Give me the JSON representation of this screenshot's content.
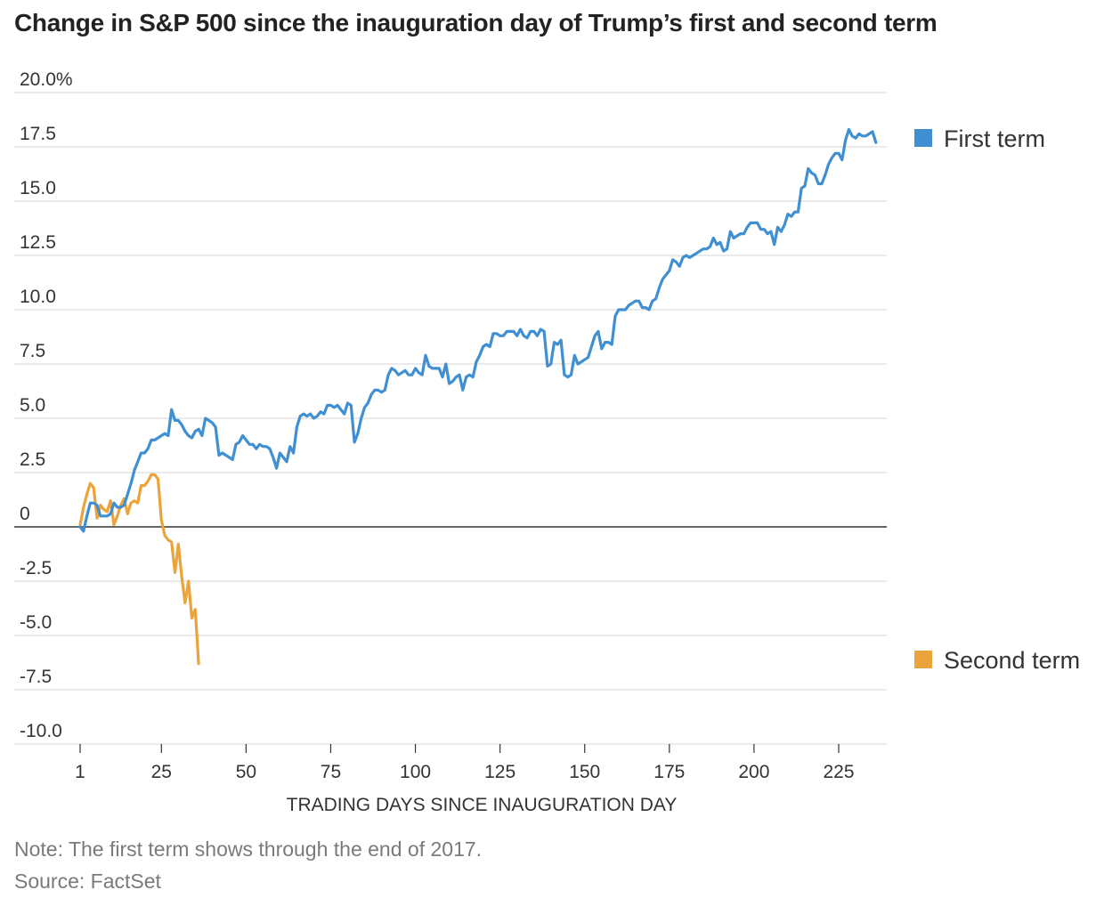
{
  "title": "Change in S&P 500 since the inauguration day of Trump’s first and second term",
  "note": "Note: The first term shows through the end of 2017.",
  "source": "Source: FactSet",
  "chart_data": {
    "type": "line",
    "title": "Change in S&P 500 since the inauguration day of Trump’s first and second term",
    "xlabel": "TRADING DAYS SINCE INAUGURATION DAY",
    "ylabel": "",
    "xlim": [
      1,
      240
    ],
    "ylim": [
      -10,
      20
    ],
    "x_ticks": [
      1,
      25,
      50,
      75,
      100,
      125,
      150,
      175,
      200,
      225
    ],
    "x_tick_labels": [
      "1",
      "25",
      "50",
      "75",
      "100",
      "125",
      "150",
      "175",
      "200",
      "225"
    ],
    "y_ticks": [
      20,
      17.5,
      15,
      12.5,
      10,
      7.5,
      5,
      2.5,
      0,
      -2.5,
      -5,
      -7.5,
      -10
    ],
    "y_tick_labels": [
      "20.0%",
      "17.5",
      "15.0",
      "12.5",
      "10.0",
      "7.5",
      "5.0",
      "2.5",
      "0",
      "-2.5",
      "-5.0",
      "-7.5",
      "-10.0"
    ],
    "grid": true,
    "legend_position": "right",
    "series": [
      {
        "name": "First term",
        "color": "#3f8fd2",
        "points": [
          [
            1,
            0.0
          ],
          [
            2,
            -0.2
          ],
          [
            3,
            0.5
          ],
          [
            4,
            1.1
          ],
          [
            5,
            1.1
          ],
          [
            6,
            1.0
          ],
          [
            7,
            0.5
          ],
          [
            8,
            0.5
          ],
          [
            9,
            0.5
          ],
          [
            10,
            0.6
          ],
          [
            11,
            1.1
          ],
          [
            12,
            0.9
          ],
          [
            13,
            0.9
          ],
          [
            14,
            1.0
          ],
          [
            15,
            1.5
          ],
          [
            16,
            2.0
          ],
          [
            17,
            2.6
          ],
          [
            18,
            3.0
          ],
          [
            19,
            3.4
          ],
          [
            20,
            3.4
          ],
          [
            21,
            3.6
          ],
          [
            22,
            4.0
          ],
          [
            23,
            4.0
          ],
          [
            24,
            4.1
          ],
          [
            25,
            4.2
          ],
          [
            26,
            4.3
          ],
          [
            27,
            4.2
          ],
          [
            28,
            5.4
          ],
          [
            29,
            4.9
          ],
          [
            30,
            4.9
          ],
          [
            31,
            4.7
          ],
          [
            32,
            4.4
          ],
          [
            33,
            4.2
          ],
          [
            34,
            4.1
          ],
          [
            35,
            4.4
          ],
          [
            36,
            4.5
          ],
          [
            37,
            4.2
          ],
          [
            38,
            5.0
          ],
          [
            39,
            4.9
          ],
          [
            40,
            4.8
          ],
          [
            41,
            4.6
          ],
          [
            42,
            3.3
          ],
          [
            43,
            3.4
          ],
          [
            44,
            3.3
          ],
          [
            45,
            3.2
          ],
          [
            46,
            3.1
          ],
          [
            47,
            3.8
          ],
          [
            48,
            3.9
          ],
          [
            49,
            4.2
          ],
          [
            50,
            4.0
          ],
          [
            51,
            3.8
          ],
          [
            52,
            3.8
          ],
          [
            53,
            3.6
          ],
          [
            54,
            3.8
          ],
          [
            55,
            3.7
          ],
          [
            56,
            3.7
          ],
          [
            57,
            3.6
          ],
          [
            58,
            3.2
          ],
          [
            59,
            2.7
          ],
          [
            60,
            3.4
          ],
          [
            61,
            3.2
          ],
          [
            62,
            3.0
          ],
          [
            63,
            3.7
          ],
          [
            64,
            3.4
          ],
          [
            65,
            4.6
          ],
          [
            66,
            5.1
          ],
          [
            67,
            5.2
          ],
          [
            68,
            5.1
          ],
          [
            69,
            5.2
          ],
          [
            70,
            5.0
          ],
          [
            71,
            5.1
          ],
          [
            72,
            5.3
          ],
          [
            73,
            5.2
          ],
          [
            74,
            5.6
          ],
          [
            75,
            5.6
          ],
          [
            76,
            5.5
          ],
          [
            77,
            5.6
          ],
          [
            78,
            5.4
          ],
          [
            79,
            5.2
          ],
          [
            80,
            5.7
          ],
          [
            81,
            5.6
          ],
          [
            82,
            3.9
          ],
          [
            83,
            4.3
          ],
          [
            84,
            5.0
          ],
          [
            85,
            5.5
          ],
          [
            86,
            5.7
          ],
          [
            87,
            6.1
          ],
          [
            88,
            6.3
          ],
          [
            89,
            6.3
          ],
          [
            90,
            6.2
          ],
          [
            91,
            6.3
          ],
          [
            92,
            7.0
          ],
          [
            93,
            7.3
          ],
          [
            94,
            7.2
          ],
          [
            95,
            7.0
          ],
          [
            96,
            7.1
          ],
          [
            97,
            7.2
          ],
          [
            98,
            7.0
          ],
          [
            99,
            7.0
          ],
          [
            100,
            7.3
          ],
          [
            101,
            7.1
          ],
          [
            102,
            7.0
          ],
          [
            103,
            7.9
          ],
          [
            104,
            7.4
          ],
          [
            105,
            7.3
          ],
          [
            106,
            7.3
          ],
          [
            107,
            7.3
          ],
          [
            108,
            6.9
          ],
          [
            109,
            7.5
          ],
          [
            110,
            6.6
          ],
          [
            111,
            6.7
          ],
          [
            112,
            6.9
          ],
          [
            113,
            7.0
          ],
          [
            114,
            6.3
          ],
          [
            115,
            6.9
          ],
          [
            116,
            7.0
          ],
          [
            117,
            6.9
          ],
          [
            118,
            7.6
          ],
          [
            119,
            7.9
          ],
          [
            120,
            8.3
          ],
          [
            121,
            8.4
          ],
          [
            122,
            8.3
          ],
          [
            123,
            8.9
          ],
          [
            124,
            8.9
          ],
          [
            125,
            8.8
          ],
          [
            126,
            8.8
          ],
          [
            127,
            9.0
          ],
          [
            128,
            9.0
          ],
          [
            129,
            9.0
          ],
          [
            130,
            8.8
          ],
          [
            131,
            9.1
          ],
          [
            132,
            8.8
          ],
          [
            133,
            8.7
          ],
          [
            134,
            9.0
          ],
          [
            135,
            9.0
          ],
          [
            136,
            8.8
          ],
          [
            137,
            9.1
          ],
          [
            138,
            9.0
          ],
          [
            139,
            7.4
          ],
          [
            140,
            7.5
          ],
          [
            141,
            8.5
          ],
          [
            142,
            8.4
          ],
          [
            143,
            8.6
          ],
          [
            144,
            7.0
          ],
          [
            145,
            6.9
          ],
          [
            146,
            7.0
          ],
          [
            147,
            7.9
          ],
          [
            148,
            7.5
          ],
          [
            149,
            7.6
          ],
          [
            150,
            7.7
          ],
          [
            151,
            7.8
          ],
          [
            152,
            8.3
          ],
          [
            153,
            8.8
          ],
          [
            154,
            9.0
          ],
          [
            155,
            8.2
          ],
          [
            156,
            8.5
          ],
          [
            157,
            8.5
          ],
          [
            158,
            8.4
          ],
          [
            159,
            9.7
          ],
          [
            160,
            10.0
          ],
          [
            161,
            10.0
          ],
          [
            162,
            10.0
          ],
          [
            163,
            10.2
          ],
          [
            164,
            10.3
          ],
          [
            165,
            10.4
          ],
          [
            166,
            10.4
          ],
          [
            167,
            10.1
          ],
          [
            168,
            10.1
          ],
          [
            169,
            10.0
          ],
          [
            170,
            10.4
          ],
          [
            171,
            10.5
          ],
          [
            172,
            11.0
          ],
          [
            173,
            11.4
          ],
          [
            174,
            11.6
          ],
          [
            175,
            11.8
          ],
          [
            176,
            12.3
          ],
          [
            177,
            12.2
          ],
          [
            178,
            12.0
          ],
          [
            179,
            12.4
          ],
          [
            180,
            12.5
          ],
          [
            181,
            12.4
          ],
          [
            182,
            12.5
          ],
          [
            183,
            12.6
          ],
          [
            184,
            12.7
          ],
          [
            185,
            12.8
          ],
          [
            186,
            12.8
          ],
          [
            187,
            12.9
          ],
          [
            188,
            13.3
          ],
          [
            189,
            13.0
          ],
          [
            190,
            13.1
          ],
          [
            191,
            12.7
          ],
          [
            192,
            12.8
          ],
          [
            193,
            13.6
          ],
          [
            194,
            13.3
          ],
          [
            195,
            13.4
          ],
          [
            196,
            13.5
          ],
          [
            197,
            13.5
          ],
          [
            198,
            13.8
          ],
          [
            199,
            14.0
          ],
          [
            200,
            14.0
          ],
          [
            201,
            14.0
          ],
          [
            202,
            13.7
          ],
          [
            203,
            13.7
          ],
          [
            204,
            13.5
          ],
          [
            205,
            13.6
          ],
          [
            206,
            13.0
          ],
          [
            207,
            13.8
          ],
          [
            208,
            13.6
          ],
          [
            209,
            13.9
          ],
          [
            210,
            14.4
          ],
          [
            211,
            14.3
          ],
          [
            212,
            14.5
          ],
          [
            213,
            14.5
          ],
          [
            214,
            15.6
          ],
          [
            215,
            15.7
          ],
          [
            216,
            16.5
          ],
          [
            217,
            16.3
          ],
          [
            218,
            16.2
          ],
          [
            219,
            15.8
          ],
          [
            220,
            15.8
          ],
          [
            221,
            16.2
          ],
          [
            222,
            16.7
          ],
          [
            223,
            17.0
          ],
          [
            224,
            17.2
          ],
          [
            225,
            17.2
          ],
          [
            226,
            16.9
          ],
          [
            227,
            17.8
          ],
          [
            228,
            18.3
          ],
          [
            229,
            18.0
          ],
          [
            230,
            17.9
          ],
          [
            231,
            18.1
          ],
          [
            232,
            18.0
          ],
          [
            233,
            18.0
          ],
          [
            234,
            18.1
          ],
          [
            235,
            18.2
          ],
          [
            236,
            17.7
          ]
        ]
      },
      {
        "name": "Second term",
        "color": "#eba43c",
        "points": [
          [
            1,
            0.1
          ],
          [
            2,
            0.9
          ],
          [
            3,
            1.5
          ],
          [
            4,
            2.0
          ],
          [
            5,
            1.8
          ],
          [
            6,
            0.4
          ],
          [
            7,
            1.0
          ],
          [
            8,
            0.8
          ],
          [
            9,
            0.7
          ],
          [
            10,
            1.2
          ],
          [
            11,
            0.1
          ],
          [
            12,
            0.5
          ],
          [
            13,
            1.0
          ],
          [
            14,
            1.3
          ],
          [
            15,
            0.6
          ],
          [
            16,
            1.1
          ],
          [
            17,
            1.2
          ],
          [
            18,
            1.1
          ],
          [
            19,
            1.9
          ],
          [
            20,
            1.9
          ],
          [
            21,
            2.1
          ],
          [
            22,
            2.4
          ],
          [
            23,
            2.4
          ],
          [
            24,
            2.2
          ],
          [
            25,
            0.3
          ],
          [
            26,
            -0.4
          ],
          [
            27,
            -0.6
          ],
          [
            28,
            -0.7
          ],
          [
            29,
            -2.1
          ],
          [
            30,
            -0.8
          ],
          [
            31,
            -2.3
          ],
          [
            32,
            -3.5
          ],
          [
            33,
            -2.5
          ],
          [
            34,
            -4.2
          ],
          [
            35,
            -3.8
          ],
          [
            36,
            -6.3
          ]
        ]
      }
    ]
  }
}
